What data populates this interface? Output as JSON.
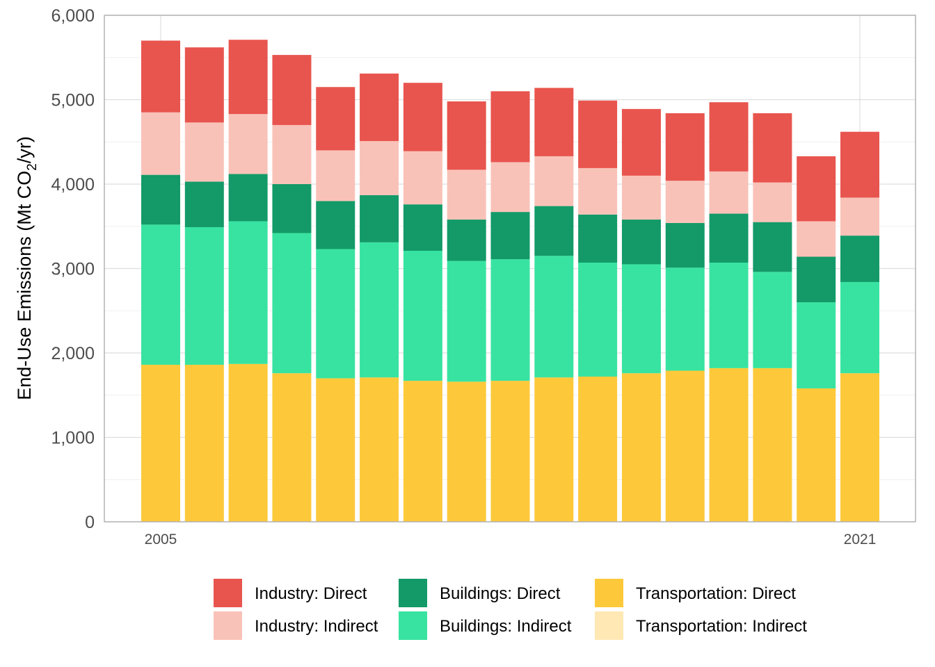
{
  "chart_data": {
    "type": "bar",
    "stacked": true,
    "ylabel": "End-Use Emissions (Mt CO2/yr)",
    "ylabel_parts": {
      "before": "End-Use Emissions (Mt CO",
      "sub": "2",
      "after": "/yr)"
    },
    "ylim": [
      0,
      6000
    ],
    "yticks": [
      "0",
      "1,000",
      "2,000",
      "3,000",
      "4,000",
      "5,000",
      "6,000"
    ],
    "ytick_values": [
      0,
      1000,
      2000,
      3000,
      4000,
      5000,
      6000
    ],
    "years": [
      2005,
      2006,
      2007,
      2008,
      2009,
      2010,
      2011,
      2012,
      2013,
      2014,
      2015,
      2016,
      2017,
      2018,
      2019,
      2020,
      2021
    ],
    "xtick_labels": [
      {
        "index": 0,
        "label": "2005"
      },
      {
        "index": 16,
        "label": "2021"
      }
    ],
    "grid": true,
    "legend_position": "bottom",
    "series": [
      {
        "name": "Transportation: Direct",
        "color": "#FDC93B",
        "values": [
          1860,
          1860,
          1870,
          1760,
          1700,
          1710,
          1670,
          1660,
          1670,
          1710,
          1720,
          1760,
          1790,
          1820,
          1820,
          1580,
          1760
        ]
      },
      {
        "name": "Transportation: Indirect",
        "color": "#FFE8B4",
        "values": [
          0,
          0,
          0,
          0,
          0,
          0,
          0,
          0,
          0,
          0,
          0,
          0,
          0,
          0,
          0,
          0,
          0
        ]
      },
      {
        "name": "Buildings: Indirect",
        "color": "#38E3A1",
        "values": [
          1660,
          1630,
          1690,
          1660,
          1530,
          1600,
          1540,
          1430,
          1440,
          1440,
          1350,
          1290,
          1220,
          1250,
          1140,
          1020,
          1080
        ]
      },
      {
        "name": "Buildings: Direct",
        "color": "#139A68",
        "values": [
          590,
          540,
          560,
          580,
          570,
          560,
          550,
          490,
          560,
          590,
          570,
          530,
          530,
          580,
          590,
          540,
          550
        ]
      },
      {
        "name": "Industry: Indirect",
        "color": "#F9C2B8",
        "values": [
          740,
          700,
          710,
          700,
          600,
          640,
          630,
          590,
          590,
          590,
          550,
          520,
          500,
          500,
          470,
          420,
          450
        ]
      },
      {
        "name": "Industry: Direct",
        "color": "#E8554E",
        "values": [
          850,
          890,
          880,
          830,
          750,
          800,
          810,
          810,
          840,
          810,
          800,
          790,
          800,
          820,
          820,
          770,
          780
        ]
      }
    ],
    "legend": [
      {
        "name": "Industry: Direct",
        "color": "#E8554E"
      },
      {
        "name": "Industry: Indirect",
        "color": "#F9C2B8"
      },
      {
        "name": "Buildings: Direct",
        "color": "#139A68"
      },
      {
        "name": "Buildings: Indirect",
        "color": "#38E3A1"
      },
      {
        "name": "Transportation: Direct",
        "color": "#FDC93B"
      },
      {
        "name": "Transportation: Indirect",
        "color": "#FFE8B4"
      }
    ]
  }
}
